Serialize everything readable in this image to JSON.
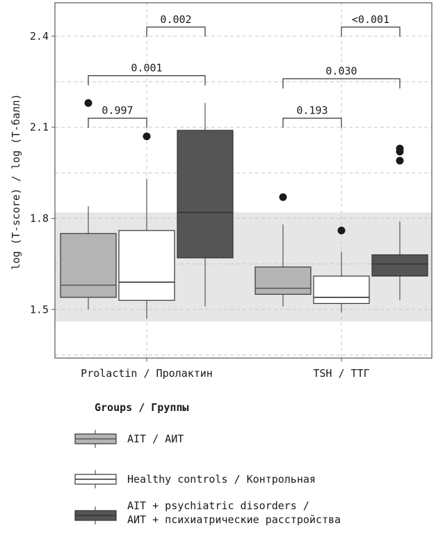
{
  "chart_data": {
    "type": "boxplot",
    "ylabel": "log (T-score) / log (T-балл)",
    "yticks": [
      "1.5",
      "1.8",
      "2.1",
      "2.4"
    ],
    "ylim": [
      1.34,
      2.51
    ],
    "reference_band": [
      1.46,
      1.82
    ],
    "categories": [
      "Prolactin / Пролактин",
      "TSH / ТТГ"
    ],
    "series": [
      {
        "name": "AIT / АИТ",
        "color": "#b4b4b4",
        "median_color": "#555555",
        "boxes": [
          {
            "whisker_low": 1.5,
            "q1": 1.54,
            "median": 1.58,
            "q3": 1.75,
            "whisker_high": 1.84,
            "outliers": [
              2.18
            ]
          },
          {
            "whisker_low": 1.51,
            "q1": 1.55,
            "median": 1.57,
            "q3": 1.64,
            "whisker_high": 1.78,
            "outliers": [
              1.87
            ]
          }
        ]
      },
      {
        "name": "Healthy controls / Контрольная",
        "color": "#ffffff",
        "median_color": "#333333",
        "boxes": [
          {
            "whisker_low": 1.47,
            "q1": 1.53,
            "median": 1.59,
            "q3": 1.76,
            "whisker_high": 1.93,
            "outliers": [
              2.07
            ]
          },
          {
            "whisker_low": 1.49,
            "q1": 1.52,
            "median": 1.54,
            "q3": 1.61,
            "whisker_high": 1.69,
            "outliers": [
              1.76
            ]
          }
        ]
      },
      {
        "name": "AIT + psychiatric disorders / АИТ + психиатрические расстройства",
        "color": "#555555",
        "median_color": "#333333",
        "boxes": [
          {
            "whisker_low": 1.51,
            "q1": 1.67,
            "median": 1.82,
            "q3": 2.09,
            "whisker_high": 2.18,
            "outliers": []
          },
          {
            "whisker_low": 1.53,
            "q1": 1.61,
            "median": 1.65,
            "q3": 1.68,
            "whisker_high": 1.79,
            "outliers": [
              2.03,
              2.02,
              1.99
            ]
          }
        ]
      }
    ],
    "comparisons": [
      {
        "category": 0,
        "from": 0,
        "to": 1,
        "level": 2.13,
        "p": "0.997"
      },
      {
        "category": 0,
        "from": 0,
        "to": 2,
        "level": 2.27,
        "p": "0.001"
      },
      {
        "category": 0,
        "from": 1,
        "to": 2,
        "level": 2.43,
        "p": "0.002"
      },
      {
        "category": 1,
        "from": 0,
        "to": 1,
        "level": 2.13,
        "p": "0.193"
      },
      {
        "category": 1,
        "from": 0,
        "to": 2,
        "level": 2.26,
        "p": "0.030"
      },
      {
        "category": 1,
        "from": 1,
        "to": 2,
        "level": 2.43,
        "p": "<0.001"
      }
    ],
    "legend": {
      "title": "Groups / Группы",
      "items": [
        {
          "lines": [
            "AIT / АИТ"
          ]
        },
        {
          "lines": [
            "Healthy controls / Контрольная"
          ]
        },
        {
          "lines": [
            "AIT + psychiatric disorders /",
            "АИТ + психиатрические расстройства"
          ]
        }
      ]
    }
  }
}
